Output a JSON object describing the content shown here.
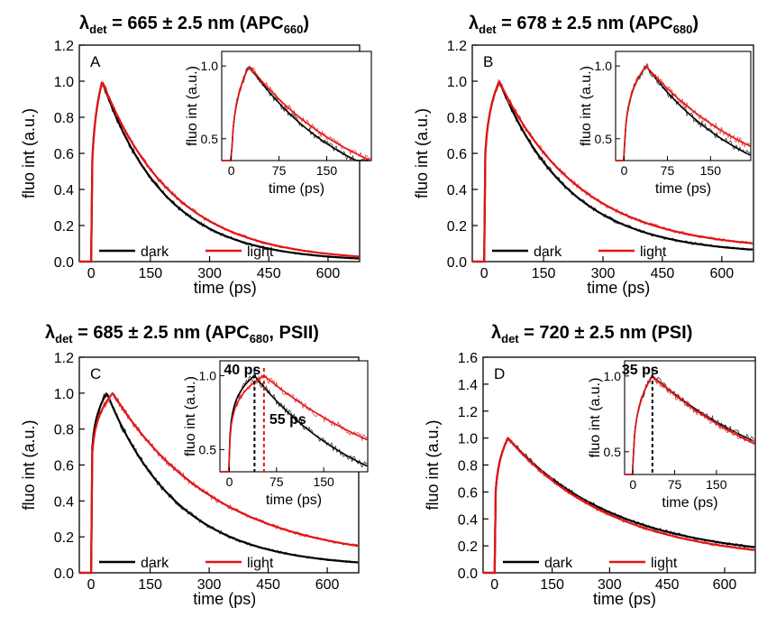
{
  "colors": {
    "dark": "#000000",
    "light": "#e31414",
    "raw_dark": "#333333",
    "raw_light": "#e84848"
  },
  "chart_data": [
    {
      "type": "line",
      "panel": "A",
      "title": {
        "lambda": "λ",
        "sub": "det",
        "value": " = 665 ± 2.5 nm (APC",
        "species_sub": "660",
        "close": ")"
      },
      "xlabel": "time (ps)",
      "ylabel": "fluo int (a.u.)",
      "xlim": [
        -30,
        680
      ],
      "ylim": [
        0,
        1.2
      ],
      "xticks": [
        "0",
        "150",
        "300",
        "450",
        "600"
      ],
      "yticks": [
        "0.0",
        "0.2",
        "0.4",
        "0.6",
        "0.8",
        "1.0",
        "1.2"
      ],
      "legend": [
        {
          "name": "dark",
          "color": "#000000"
        },
        {
          "name": "light",
          "color": "#e31414"
        }
      ],
      "model": {
        "rise": 0.25,
        "dark": {
          "peak": 28,
          "tau": 160,
          "base": 0.0
        },
        "light": {
          "peak": 28,
          "tau": 182,
          "base": 0.0
        }
      },
      "inset": {
        "xlabel": "time (ps)",
        "ylabel": "fluo int (a.u.)",
        "xlim": [
          -15,
          220
        ],
        "ylim": [
          0.35,
          1.1
        ],
        "xticks": [
          "0",
          "75",
          "150"
        ],
        "yticks": [
          "0.5",
          "1.0"
        ]
      }
    },
    {
      "type": "line",
      "panel": "B",
      "title": {
        "lambda": "λ",
        "sub": "det",
        "value": " = 678 ± 2.5 nm (APC",
        "species_sub": "680",
        "close": ")"
      },
      "xlabel": "time (ps)",
      "ylabel": "fluo int (a.u.)",
      "xlim": [
        -30,
        680
      ],
      "ylim": [
        0,
        1.2
      ],
      "xticks": [
        "0",
        "150",
        "300",
        "450",
        "600"
      ],
      "yticks": [
        "0.0",
        "0.2",
        "0.4",
        "0.6",
        "0.8",
        "1.0",
        "1.2"
      ],
      "legend": [
        {
          "name": "dark",
          "color": "#000000"
        },
        {
          "name": "light",
          "color": "#e31414"
        }
      ],
      "model": {
        "rise": 0.2,
        "dark": {
          "peak": 38,
          "tau": 178,
          "base": 0.04
        },
        "light": {
          "peak": 38,
          "tau": 205,
          "base": 0.06
        }
      },
      "inset": {
        "xlabel": "time (ps)",
        "ylabel": "fluo int (a.u.)",
        "xlim": [
          -15,
          220
        ],
        "ylim": [
          0.35,
          1.1
        ],
        "xticks": [
          "0",
          "75",
          "150"
        ],
        "yticks": [
          "0.5",
          "1.0"
        ]
      }
    },
    {
      "type": "line",
      "panel": "C",
      "title": {
        "lambda": "λ",
        "sub": "det",
        "value": " = 685 ± 2.5 nm (APC",
        "species_sub": "680",
        "close": ", PSII)"
      },
      "xlabel": "time (ps)",
      "ylabel": "fluo int (a.u.)",
      "xlim": [
        -30,
        680
      ],
      "ylim": [
        0,
        1.2
      ],
      "xticks": [
        "0",
        "150",
        "300",
        "450",
        "600"
      ],
      "yticks": [
        "0.0",
        "0.2",
        "0.4",
        "0.6",
        "0.8",
        "1.0",
        "1.2"
      ],
      "legend": [
        {
          "name": "dark",
          "color": "#000000"
        },
        {
          "name": "light",
          "color": "#e31414"
        }
      ],
      "model": {
        "rise": 0.14,
        "dark": {
          "peak": 40,
          "tau": 180,
          "base": 0.03
        },
        "light": {
          "peak": 55,
          "tau": 265,
          "base": 0.06
        }
      },
      "inset": {
        "xlabel": "time (ps)",
        "ylabel": "fluo int (a.u.)",
        "xlim": [
          -15,
          220
        ],
        "ylim": [
          0.35,
          1.1
        ],
        "xticks": [
          "0",
          "75",
          "150"
        ],
        "yticks": [
          "0.5",
          "1.0"
        ],
        "markers": [
          {
            "x": 40,
            "label": "40 ps",
            "color": "#000000"
          },
          {
            "x": 55,
            "label": "55 ps",
            "color": "#e31414"
          }
        ]
      }
    },
    {
      "type": "line",
      "panel": "D",
      "title": {
        "lambda": "λ",
        "sub": "det",
        "value": " = 720 ± 2.5 nm (PSI)",
        "species_sub": "",
        "close": ""
      },
      "xlabel": "time (ps)",
      "ylabel": "fluo int (a.u.)",
      "xlim": [
        -30,
        680
      ],
      "ylim": [
        0,
        1.6
      ],
      "xticks": [
        "0",
        "150",
        "300",
        "450",
        "600"
      ],
      "yticks": [
        "0.0",
        "0.2",
        "0.4",
        "0.6",
        "0.8",
        "1.0",
        "1.2",
        "1.4",
        "1.6"
      ],
      "legend": [
        {
          "name": "dark",
          "color": "#000000"
        },
        {
          "name": "light",
          "color": "#e31414"
        }
      ],
      "model": {
        "rise": 0.2,
        "dark": {
          "peak": 35,
          "tau": 280,
          "base": 0.1
        },
        "light": {
          "peak": 35,
          "tau": 275,
          "base": 0.08
        }
      },
      "inset": {
        "xlabel": "time (ps)",
        "ylabel": "fluo int (a.u.)",
        "xlim": [
          -15,
          220
        ],
        "ylim": [
          0.35,
          1.1
        ],
        "xticks": [
          "0",
          "75",
          "150"
        ],
        "yticks": [
          "0.5",
          "1.0"
        ],
        "markers": [
          {
            "x": 35,
            "label": "35 ps",
            "color": "#000000"
          }
        ]
      }
    }
  ]
}
